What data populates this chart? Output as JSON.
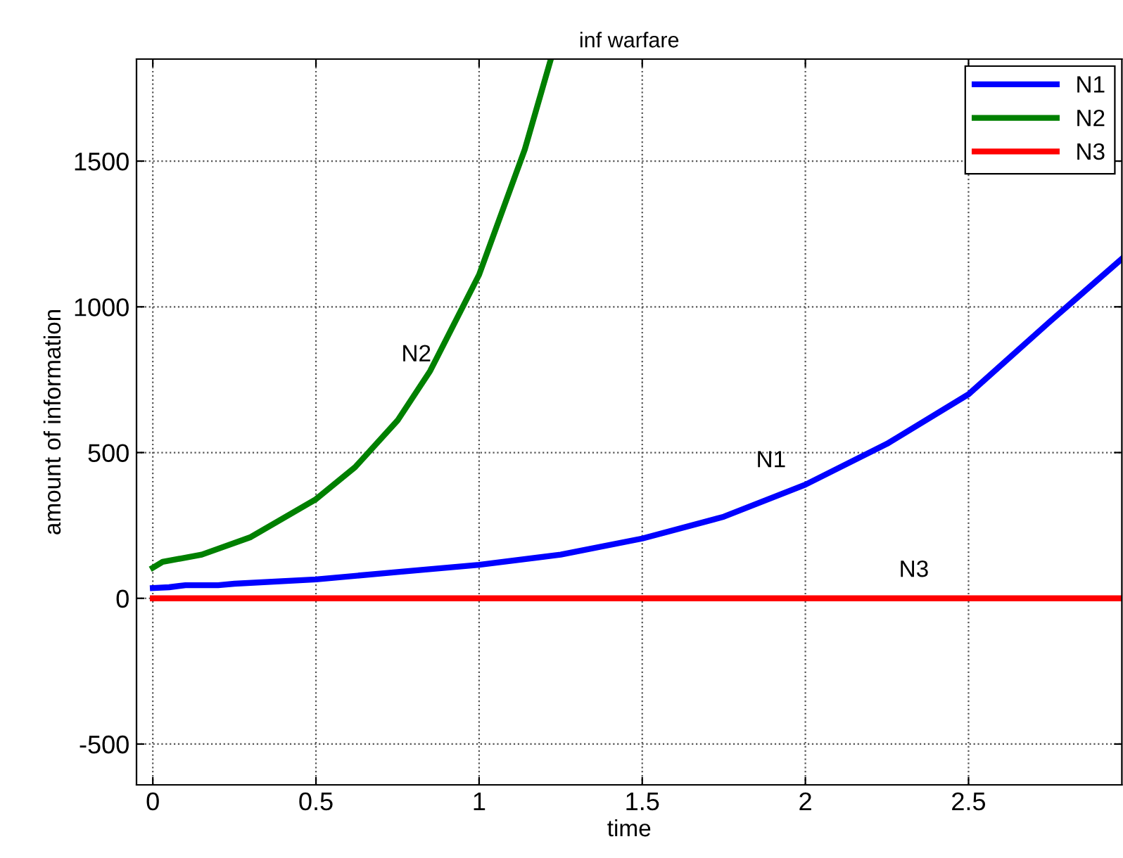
{
  "chart_data": {
    "type": "line",
    "title": "inf warfare",
    "xlabel": "time",
    "ylabel": "amount of information",
    "xlim": [
      -0.05,
      2.97
    ],
    "ylim": [
      -640,
      1850
    ],
    "xticks": [
      0,
      0.5,
      1,
      1.5,
      2,
      2.5
    ],
    "yticks": [
      -500,
      0,
      500,
      1000,
      1500
    ],
    "grid": true,
    "legend": "top right",
    "line_style": "solid",
    "marker": "none",
    "series": [
      {
        "name": "N1",
        "color": "#0000ff",
        "x": [
          0,
          0.05,
          0.1,
          0.2,
          0.25,
          0.5,
          0.75,
          1.0,
          1.25,
          1.5,
          1.75,
          2.0,
          2.25,
          2.5,
          2.75,
          2.97
        ],
        "values": [
          35,
          38,
          45,
          45,
          50,
          65,
          90,
          115,
          150,
          205,
          280,
          390,
          530,
          700,
          950,
          1165
        ]
      },
      {
        "name": "N2",
        "color": "#008000",
        "x": [
          0,
          0.03,
          0.15,
          0.3,
          0.5,
          0.62,
          0.75,
          0.85,
          1.0,
          1.14,
          1.22
        ],
        "values": [
          105,
          125,
          150,
          210,
          340,
          450,
          610,
          780,
          1110,
          1540,
          1850
        ]
      },
      {
        "name": "N3",
        "color": "#ff0000",
        "x": [
          0,
          2.97
        ],
        "values": [
          0,
          0
        ]
      }
    ],
    "annotations": [
      "N2",
      "N1",
      "N3"
    ]
  }
}
